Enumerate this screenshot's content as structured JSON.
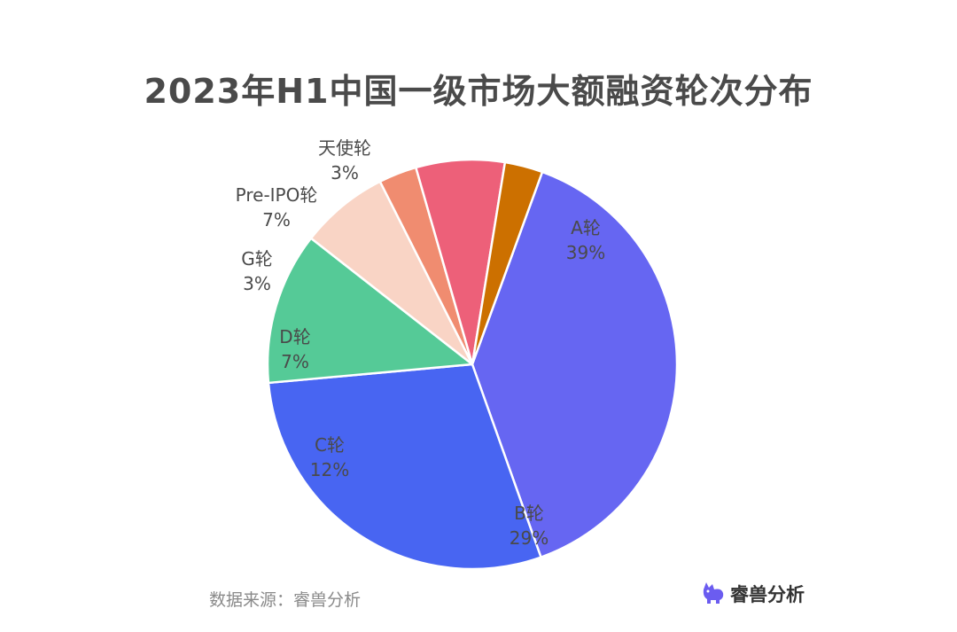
{
  "chart_data": {
    "type": "pie",
    "title": "2023年H1中国一级市场大额融资轮次分布",
    "slices": [
      {
        "label": "A轮",
        "percent_label": "39%",
        "value": 39,
        "color": "#6666f2"
      },
      {
        "label": "B轮",
        "percent_label": "29%",
        "value": 29,
        "color": "#4865f2"
      },
      {
        "label": "C轮",
        "percent_label": "12%",
        "value": 12,
        "color": "#55ca97"
      },
      {
        "label": "D轮",
        "percent_label": "7%",
        "value": 7,
        "color": "#f9d4c5"
      },
      {
        "label": "G轮",
        "percent_label": "3%",
        "value": 3,
        "color": "#f08c70"
      },
      {
        "label": "Pre-IPO轮",
        "percent_label": "7%",
        "value": 7,
        "color": "#ed6079"
      },
      {
        "label": "天使轮",
        "percent_label": "3%",
        "value": 3,
        "color": "#cc7000"
      }
    ],
    "legend": "none"
  },
  "footer": {
    "source": "数据来源：睿兽分析",
    "brand": "睿兽分析"
  },
  "colors": {
    "title": "#4a4a4a",
    "label": "#4a4a4a",
    "source": "#8a8a8a",
    "brand_icon": "#6b5cf0"
  }
}
